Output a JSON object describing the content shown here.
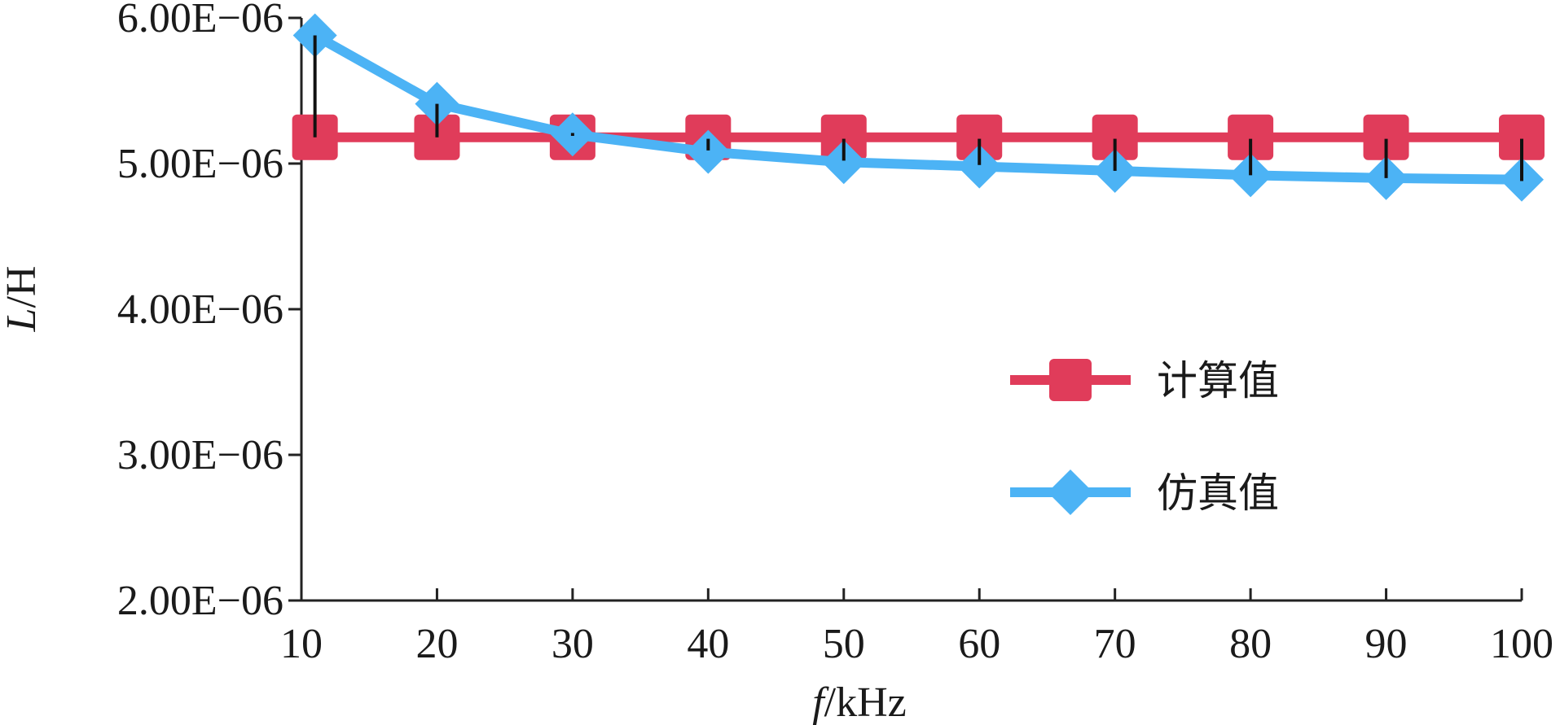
{
  "chart_data": {
    "type": "line",
    "title": "",
    "x": [
      11,
      20,
      30,
      40,
      50,
      60,
      70,
      80,
      90,
      100
    ],
    "xlim": [
      10,
      100
    ],
    "xticks": [
      10,
      20,
      30,
      40,
      50,
      60,
      70,
      80,
      90,
      100
    ],
    "xtick_labels": [
      "10",
      "20",
      "30",
      "40",
      "50",
      "60",
      "70",
      "80",
      "90",
      "100"
    ],
    "xlabel": {
      "italic": "f",
      "rest": "/kHz"
    },
    "ylim": [
      2e-06,
      6e-06
    ],
    "yticks": [
      6e-06,
      5e-06,
      4e-06,
      3e-06,
      2e-06
    ],
    "ytick_labels": [
      "6.00E−06",
      "5.00E−06",
      "4.00E−06",
      "3.00E−06",
      "2.00E−06"
    ],
    "ylabel": {
      "italic": "L",
      "rest": "/H"
    },
    "legend_position": "right",
    "grid": false,
    "series": [
      {
        "name": "计算值",
        "marker": "square",
        "color": "#e03c5a",
        "values": [
          5.18e-06,
          5.18e-06,
          5.18e-06,
          5.18e-06,
          5.18e-06,
          5.18e-06,
          5.18e-06,
          5.18e-06,
          5.18e-06,
          5.18e-06
        ]
      },
      {
        "name": "仿真值",
        "marker": "diamond",
        "color": "#4cb3f5",
        "values": [
          5.88e-06,
          5.41e-06,
          5.2e-06,
          5.08e-06,
          5.01e-06,
          4.98e-06,
          4.95e-06,
          4.92e-06,
          4.9e-06,
          4.89e-06
        ]
      }
    ],
    "error_bars": {
      "color": "#111111",
      "low": [
        5.18e-06,
        5.18e-06,
        5.19e-06,
        5.09e-06,
        5.02e-06,
        4.99e-06,
        4.95e-06,
        4.92e-06,
        4.9e-06,
        4.88e-06
      ],
      "high": [
        5.88e-06,
        5.41e-06,
        5.21e-06,
        5.17e-06,
        5.17e-06,
        5.17e-06,
        5.17e-06,
        5.17e-06,
        5.17e-06,
        5.17e-06
      ]
    }
  }
}
